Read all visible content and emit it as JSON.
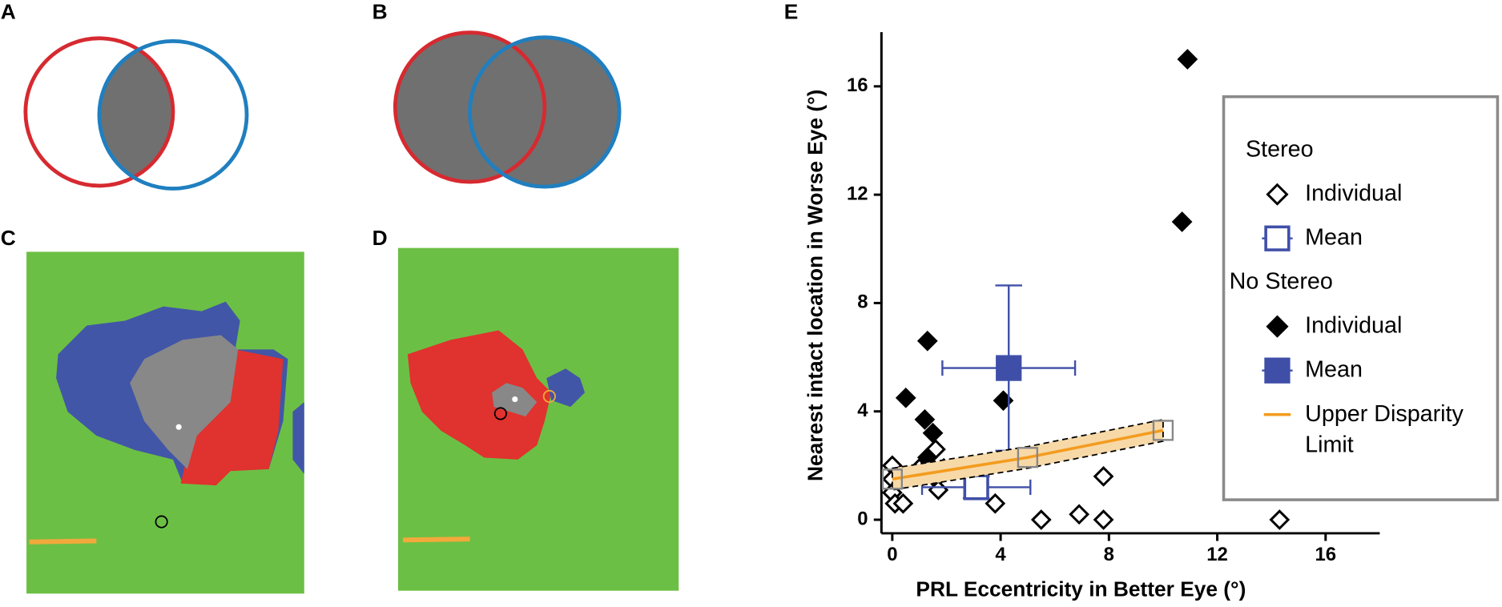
{
  "panels": {
    "labels": [
      "A",
      "B",
      "C",
      "D"
    ]
  },
  "chart_data": {
    "type": "scatter",
    "panel_label": "E",
    "xlabel": "PRL Eccentricity in Better Eye (°)",
    "ylabel": "Nearest intact location in Worse Eye (°)",
    "xlim": [
      -0.4,
      18
    ],
    "ylim": [
      -0.5,
      18
    ],
    "xticks": [
      0,
      4,
      8,
      12,
      16
    ],
    "yticks": [
      0,
      4,
      8,
      12,
      16
    ],
    "legend_groups": [
      {
        "name": "Stereo",
        "series": [
          0,
          1
        ]
      },
      {
        "name": "No Stereo",
        "series": [
          2,
          3,
          4
        ]
      }
    ],
    "series": [
      {
        "name": "Individual",
        "marker": "diamond",
        "filled": false,
        "color": "#000000",
        "x": [
          0,
          0,
          0,
          0.1,
          0.4,
          1.0,
          1.6,
          1.6,
          1.7,
          1.9,
          3.8,
          5.5,
          6.9,
          7.8,
          7.8,
          14.3
        ],
        "values": [
          2.0,
          1.5,
          1.0,
          0.6,
          0.6,
          1.9,
          2.6,
          1.5,
          1.1,
          1.9,
          0.6,
          0,
          0.2,
          0,
          1.6,
          0
        ]
      },
      {
        "name": "Mean",
        "marker": "square",
        "filled": false,
        "color": "#3f4fa8",
        "x": [
          3.1
        ],
        "values": [
          1.2
        ],
        "xerr": [
          2.0
        ],
        "yerr": [
          0.4
        ]
      },
      {
        "name": "Individual",
        "marker": "diamond",
        "filled": true,
        "color": "#000000",
        "x": [
          10.9,
          10.7,
          1.3,
          0.5,
          1.2,
          1.5,
          1.3,
          4.1
        ],
        "values": [
          17.0,
          11.0,
          6.6,
          4.5,
          3.7,
          3.2,
          2.3,
          4.4
        ]
      },
      {
        "name": "Mean",
        "marker": "square",
        "filled": true,
        "color": "#3f4fa8",
        "x": [
          4.3
        ],
        "values": [
          5.6
        ],
        "xerr": [
          2.45
        ],
        "yerr": [
          3.05
        ]
      },
      {
        "name": "Upper Disparity Limit",
        "marker": "line",
        "color": "#f39c1f",
        "band_color": "#f7d9a8",
        "point_color": "#888888",
        "x": [
          0,
          5,
          10
        ],
        "values": [
          1.5,
          2.3,
          3.3
        ],
        "band_lower": [
          1.1,
          1.9,
          2.9
        ],
        "band_upper": [
          1.9,
          2.7,
          3.7
        ]
      }
    ]
  }
}
